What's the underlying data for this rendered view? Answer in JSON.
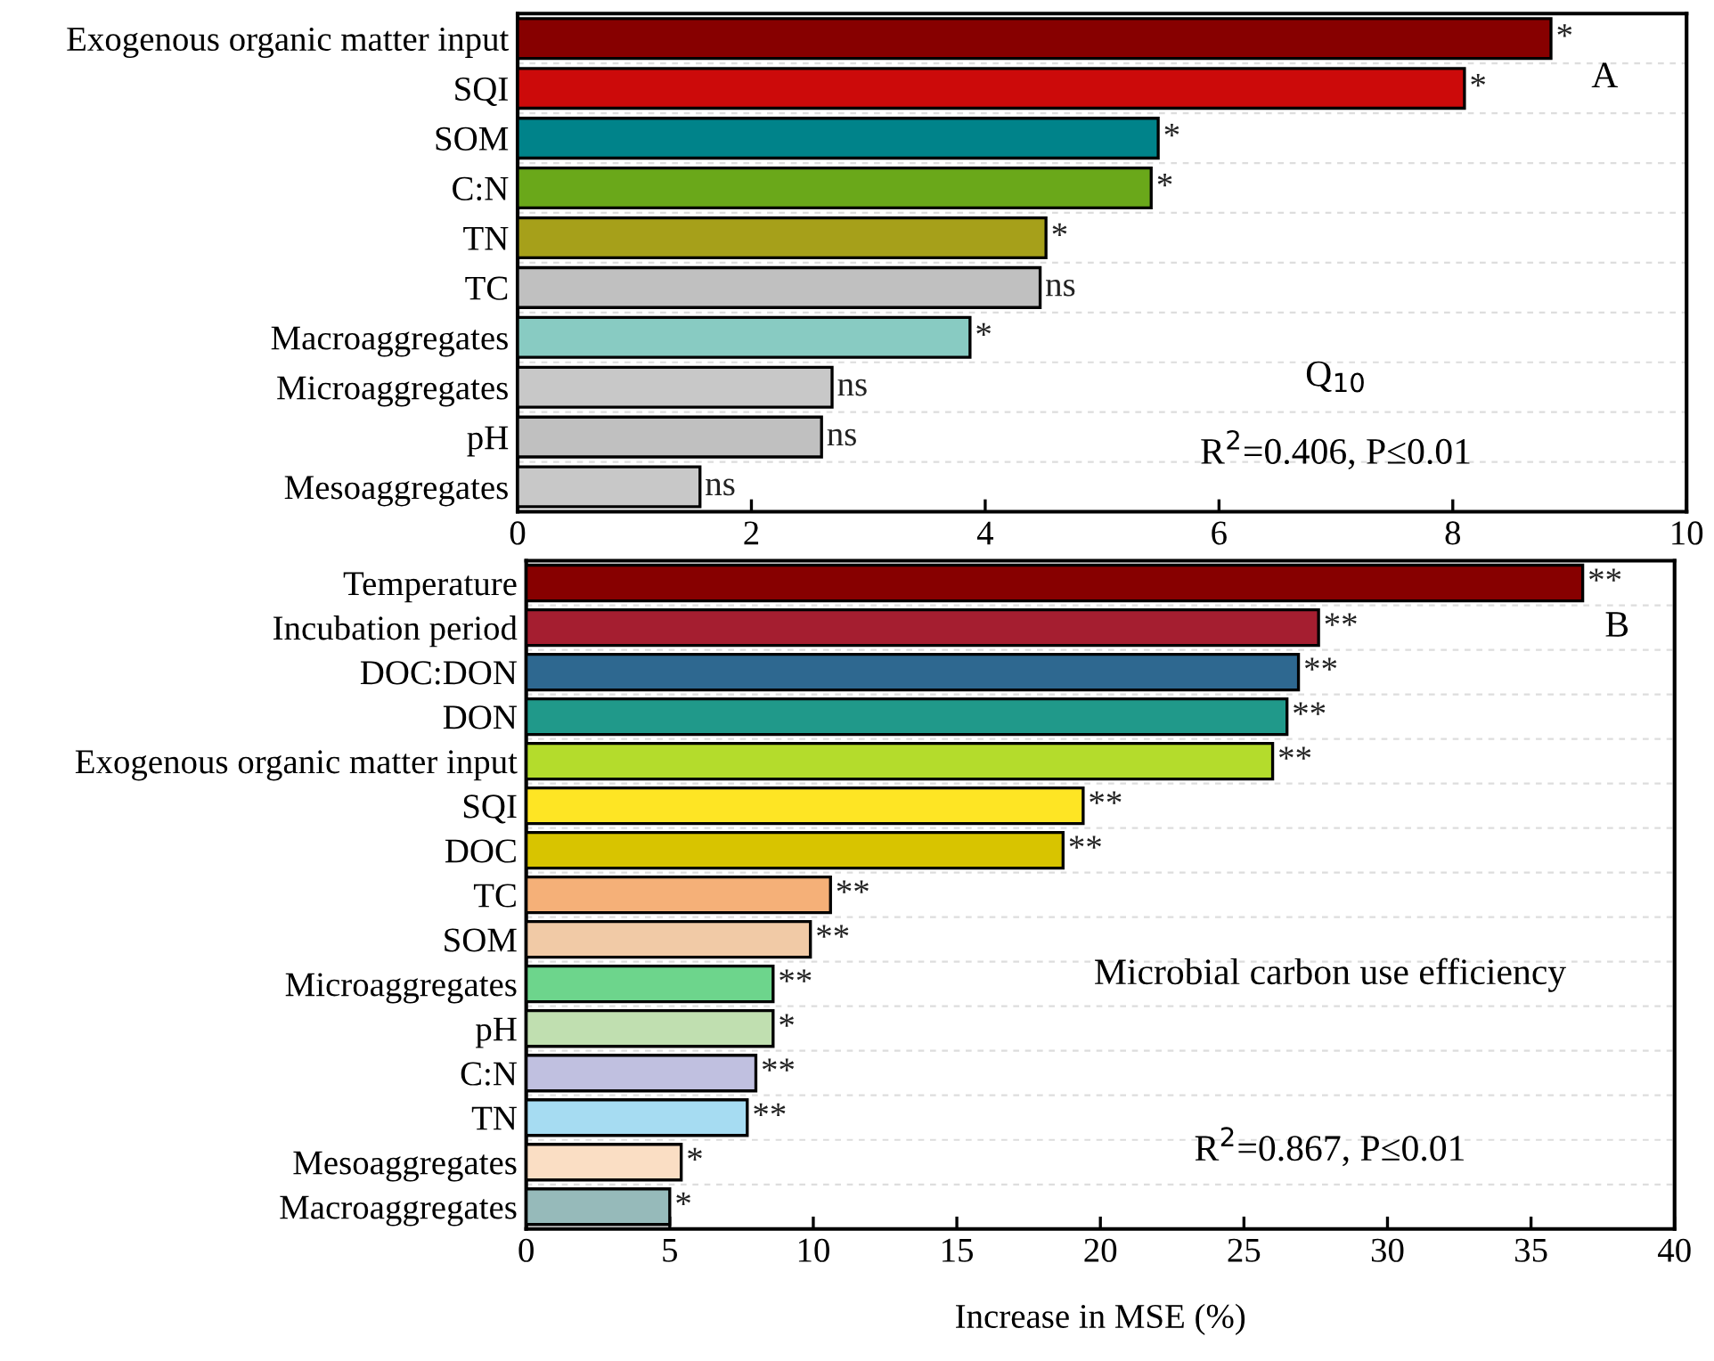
{
  "chart_data": [
    {
      "type": "bar",
      "orientation": "horizontal",
      "categories": [
        "Exogenous organic matter input",
        "SQI",
        "SOM",
        "C:N",
        "TN",
        "TC",
        "Macroaggregates",
        "Microaggregates",
        "pH",
        "Mesoaggregates"
      ],
      "values": [
        8.84,
        8.1,
        5.48,
        5.42,
        4.52,
        4.47,
        3.87,
        2.69,
        2.6,
        1.56
      ],
      "colors": [
        "#870000",
        "#cc0a0a",
        "#00838a",
        "#6aa81a",
        "#a6a01a",
        "#c0c0c0",
        "#88cbc2",
        "#c8c8c8",
        "#c0c0c0",
        "#c8c8c8"
      ],
      "value_labels": [
        "*",
        "*",
        "*",
        "*",
        "*",
        "ns",
        "*",
        "ns",
        "ns",
        "ns"
      ],
      "xlim": [
        0,
        10
      ],
      "xticks": [
        0,
        2,
        4,
        6,
        8,
        10
      ],
      "grid": "y",
      "annotations": [
        "A",
        "Q$_{10}$",
        "R$^{2}$=0.406, P≤0.01"
      ]
    },
    {
      "type": "bar",
      "orientation": "horizontal",
      "categories": [
        "Temperature",
        "Incubation period",
        "DOC:DON",
        "DON",
        "Exogenous organic matter input",
        "SQI",
        "DOC",
        "TC",
        "SOM",
        "Microaggregates",
        "pH",
        "C:N",
        "TN",
        "Mesoaggregates",
        "Macroaggregates"
      ],
      "values": [
        36.8,
        27.6,
        26.9,
        26.5,
        26.0,
        19.4,
        18.7,
        10.6,
        9.9,
        8.6,
        8.6,
        8.0,
        7.7,
        5.4,
        5.0
      ],
      "colors": [
        "#870000",
        "#a51e30",
        "#2e6890",
        "#20998a",
        "#b4dc2c",
        "#fee524",
        "#d8c400",
        "#f5b078",
        "#f1caa6",
        "#6dd58c",
        "#c0dfb0",
        "#c0c0e0",
        "#a6dcf2",
        "#fadec4",
        "#96baba"
      ],
      "value_labels": [
        "**",
        "**",
        "**",
        "**",
        "**",
        "**",
        "**",
        "**",
        "**",
        "**",
        "*",
        "**",
        "**",
        "*",
        "*"
      ],
      "xlim": [
        0,
        40
      ],
      "xticks": [
        0,
        5,
        10,
        15,
        20,
        25,
        30,
        35,
        40
      ],
      "grid": "y",
      "xlabel": "Increase in MSE (%)",
      "annotations": [
        "B",
        "Microbial carbon use efficiency",
        "R$^{2}$=0.867, P≤0.01"
      ]
    }
  ]
}
